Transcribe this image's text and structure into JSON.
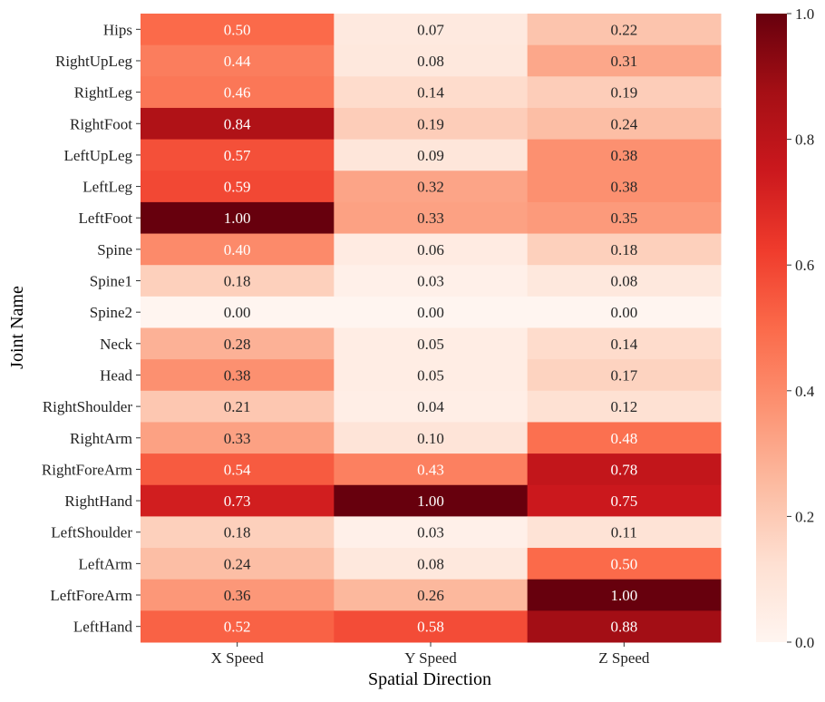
{
  "chart_data": {
    "type": "heatmap",
    "xlabel": "Spatial Direction",
    "ylabel": "Joint Name",
    "columns": [
      "X Speed",
      "Y Speed",
      "Z Speed"
    ],
    "rows": [
      "Hips",
      "RightUpLeg",
      "RightLeg",
      "RightFoot",
      "LeftUpLeg",
      "LeftLeg",
      "LeftFoot",
      "Spine",
      "Spine1",
      "Spine2",
      "Neck",
      "Head",
      "RightShoulder",
      "RightArm",
      "RightForeArm",
      "RightHand",
      "LeftShoulder",
      "LeftArm",
      "LeftForeArm",
      "LeftHand"
    ],
    "values": [
      [
        0.5,
        0.07,
        0.22
      ],
      [
        0.44,
        0.08,
        0.31
      ],
      [
        0.46,
        0.14,
        0.19
      ],
      [
        0.84,
        0.19,
        0.24
      ],
      [
        0.57,
        0.09,
        0.38
      ],
      [
        0.59,
        0.32,
        0.38
      ],
      [
        1.0,
        0.33,
        0.35
      ],
      [
        0.4,
        0.06,
        0.18
      ],
      [
        0.18,
        0.03,
        0.08
      ],
      [
        0.0,
        0.0,
        0.0
      ],
      [
        0.28,
        0.05,
        0.14
      ],
      [
        0.38,
        0.05,
        0.17
      ],
      [
        0.21,
        0.04,
        0.12
      ],
      [
        0.33,
        0.1,
        0.48
      ],
      [
        0.54,
        0.43,
        0.78
      ],
      [
        0.73,
        1.0,
        0.75
      ],
      [
        0.18,
        0.03,
        0.11
      ],
      [
        0.24,
        0.08,
        0.5
      ],
      [
        0.36,
        0.26,
        1.0
      ],
      [
        0.52,
        0.58,
        0.88
      ]
    ],
    "colormap": "Reds",
    "colorbar": {
      "range": [
        0.0,
        1.0
      ],
      "ticks": [
        "0.0",
        "0.2",
        "0.4",
        "0.6",
        "0.8",
        "1.0"
      ]
    }
  }
}
